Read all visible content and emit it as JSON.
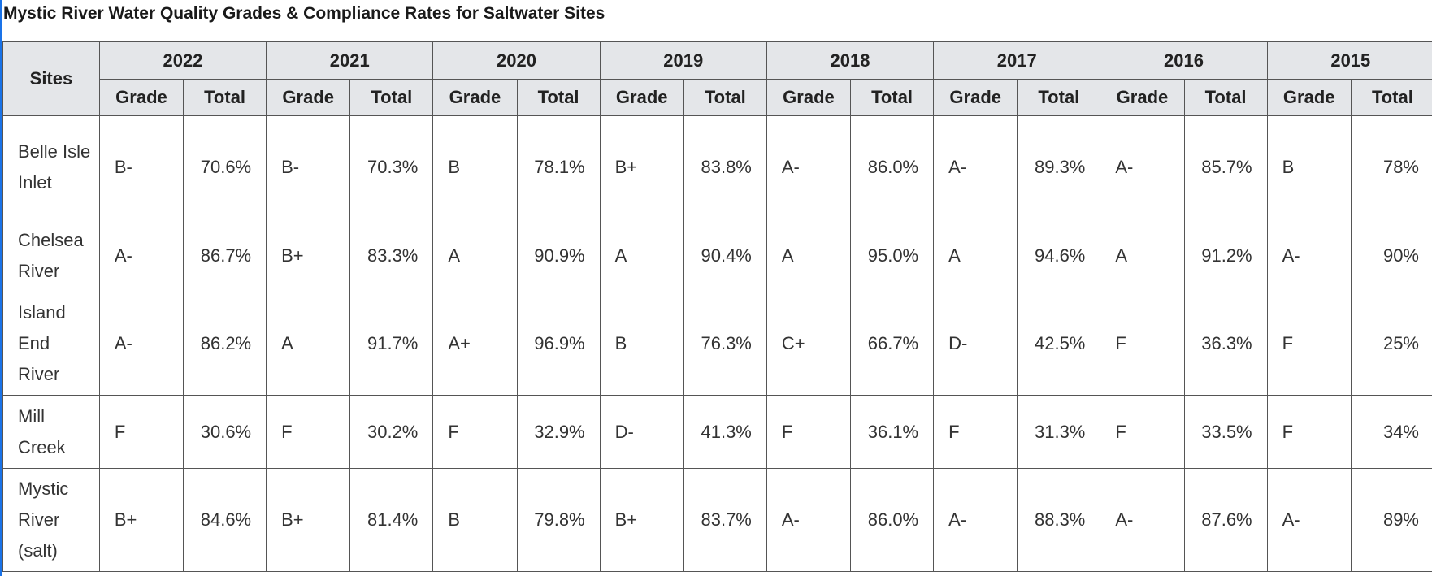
{
  "title": "Mystic River Water Quality Grades & Compliance Rates for Saltwater Sites",
  "table": {
    "sites_header": "Sites",
    "years": [
      "2022",
      "2021",
      "2020",
      "2019",
      "2018",
      "2017",
      "2016",
      "2015"
    ],
    "grade_label": "Grade",
    "total_label": "Total",
    "rows": [
      {
        "site": "Belle Isle Inlet",
        "cells": [
          {
            "grade": "B-",
            "total": "70.6%"
          },
          {
            "grade": "B-",
            "total": "70.3%"
          },
          {
            "grade": "B",
            "total": "78.1%"
          },
          {
            "grade": "B+",
            "total": "83.8%"
          },
          {
            "grade": "A-",
            "total": "86.0%"
          },
          {
            "grade": "A-",
            "total": "89.3%"
          },
          {
            "grade": "A-",
            "total": "85.7%"
          },
          {
            "grade": "B",
            "total": "78%"
          }
        ]
      },
      {
        "site": "Chelsea River",
        "cells": [
          {
            "grade": "A-",
            "total": "86.7%"
          },
          {
            "grade": "B+",
            "total": "83.3%"
          },
          {
            "grade": "A",
            "total": "90.9%"
          },
          {
            "grade": "A",
            "total": "90.4%"
          },
          {
            "grade": "A",
            "total": "95.0%"
          },
          {
            "grade": "A",
            "total": "94.6%"
          },
          {
            "grade": "A",
            "total": "91.2%"
          },
          {
            "grade": "A-",
            "total": "90%"
          }
        ]
      },
      {
        "site": "Island End River",
        "cells": [
          {
            "grade": "A-",
            "total": "86.2%"
          },
          {
            "grade": "A",
            "total": "91.7%"
          },
          {
            "grade": "A+",
            "total": "96.9%"
          },
          {
            "grade": "B",
            "total": "76.3%"
          },
          {
            "grade": "C+",
            "total": "66.7%"
          },
          {
            "grade": "D-",
            "total": "42.5%"
          },
          {
            "grade": "F",
            "total": "36.3%"
          },
          {
            "grade": "F",
            "total": "25%"
          }
        ]
      },
      {
        "site": "Mill Creek",
        "cells": [
          {
            "grade": "F",
            "total": "30.6%"
          },
          {
            "grade": "F",
            "total": "30.2%"
          },
          {
            "grade": "F",
            "total": "32.9%"
          },
          {
            "grade": "D-",
            "total": "41.3%"
          },
          {
            "grade": "F",
            "total": "36.1%"
          },
          {
            "grade": "F",
            "total": "31.3%"
          },
          {
            "grade": "F",
            "total": "33.5%"
          },
          {
            "grade": "F",
            "total": "34%"
          }
        ]
      },
      {
        "site": "Mystic River (salt)",
        "cells": [
          {
            "grade": "B+",
            "total": "84.6%"
          },
          {
            "grade": "B+",
            "total": "81.4%"
          },
          {
            "grade": "B",
            "total": "79.8%"
          },
          {
            "grade": "B+",
            "total": "83.7%"
          },
          {
            "grade": "A-",
            "total": "86.0%"
          },
          {
            "grade": "A-",
            "total": "88.3%"
          },
          {
            "grade": "A-",
            "total": "87.6%"
          },
          {
            "grade": "A-",
            "total": "89%"
          }
        ]
      }
    ]
  },
  "colors": {
    "header_background": "#e4e6e9",
    "border": "#555555",
    "left_accent": "#1a73e8"
  }
}
